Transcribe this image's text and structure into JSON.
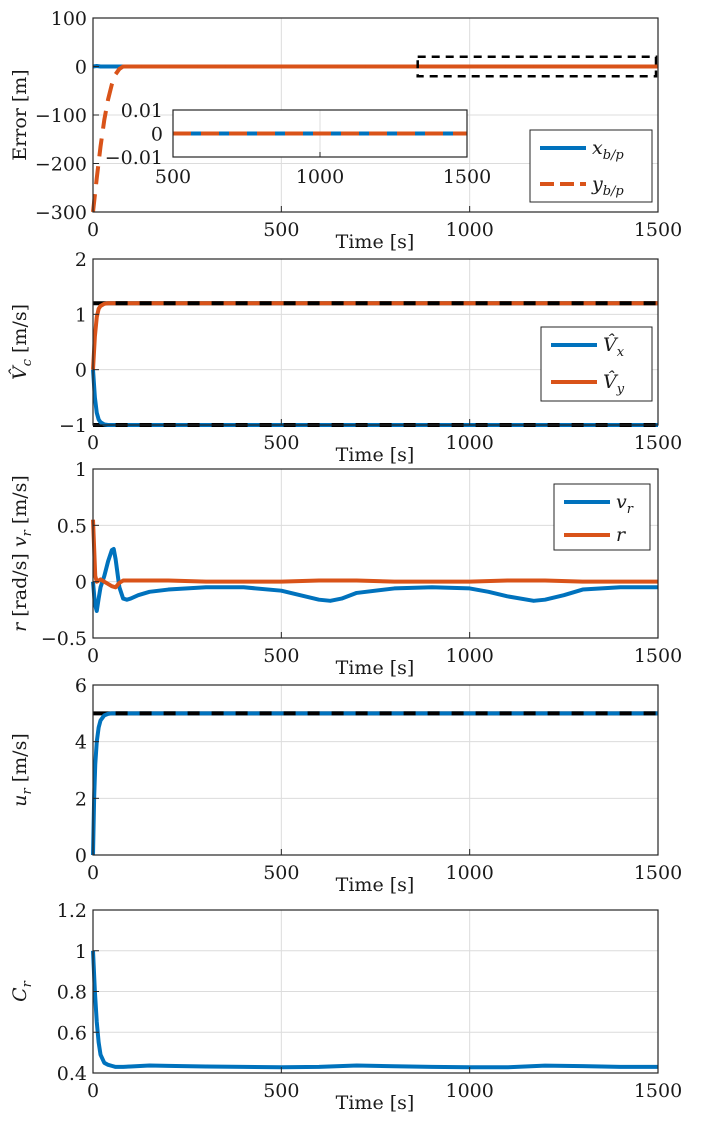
{
  "colors": {
    "blue": "#0072BD",
    "orange": "#D95319",
    "black": "#000000",
    "grid": "#dcdcdc",
    "axis": "#262626"
  },
  "chart_data": [
    {
      "type": "line",
      "id": "error",
      "xlabel": "Time [s]",
      "ylabel": "Error [m]",
      "xlim": [
        0,
        1500
      ],
      "ylim": [
        -300,
        100
      ],
      "xticks": [
        0,
        500,
        1000,
        1500
      ],
      "xtick_labels": [
        "0",
        "500",
        "1000",
        "1500"
      ],
      "yticks": [
        100,
        0,
        -100,
        -200,
        -300
      ],
      "ytick_labels": [
        "100",
        "0",
        "−100",
        "−200",
        "−300"
      ],
      "grid": true,
      "legend_position": "bottom-right",
      "series": [
        {
          "name": "x_b/p",
          "label_main": "x",
          "label_sub": "b/p",
          "color": "#0072BD",
          "style": "solid-dashed",
          "x": [
            0,
            10,
            20,
            1500
          ],
          "values": [
            0,
            1,
            0,
            0
          ]
        },
        {
          "name": "y_b/p",
          "label_main": "y",
          "label_sub": "b/p",
          "color": "#D95319",
          "style": "dashed",
          "x": [
            0,
            10,
            20,
            30,
            40,
            50,
            60,
            70,
            80,
            1500
          ],
          "values": [
            -300,
            -230,
            -165,
            -110,
            -68,
            -37,
            -16,
            -5,
            0,
            0
          ]
        }
      ],
      "zoom_box": {
        "x": [
          870,
          1500
        ],
        "y": [
          -20,
          20
        ]
      },
      "inset": {
        "xlim": [
          500,
          1500
        ],
        "ylim": [
          -0.01,
          0.01
        ],
        "xticks": [
          500,
          1000,
          1500
        ],
        "xtick_labels": [
          "500",
          "1000",
          "1500"
        ],
        "yticks": [
          0.01,
          0,
          -0.01
        ],
        "ytick_labels": [
          "0.01",
          "0",
          "−0.01"
        ]
      }
    },
    {
      "type": "line",
      "id": "current",
      "xlabel": "Time [s]",
      "ylabel_main": "V̂",
      "ylabel_sub": "c",
      "ylabel_unit": " [m/s]",
      "xlim": [
        0,
        1500
      ],
      "ylim": [
        -1,
        2
      ],
      "xticks": [
        0,
        500,
        1000,
        1500
      ],
      "xtick_labels": [
        "0",
        "500",
        "1000",
        "1500"
      ],
      "yticks": [
        2,
        1,
        0,
        -1
      ],
      "ytick_labels": [
        "2",
        "1",
        "0",
        "−1"
      ],
      "grid": true,
      "legend_position": "right",
      "references": [
        {
          "value": 1.2,
          "color": "#000000",
          "style": "dashed"
        },
        {
          "value": -1.0,
          "color": "#000000",
          "style": "dashed"
        }
      ],
      "series": [
        {
          "name": "V̂x",
          "label_main": "V̂",
          "label_sub": "x",
          "color": "#0072BD",
          "style": "solid-dashed",
          "x": [
            0,
            5,
            10,
            15,
            20,
            30,
            40,
            60,
            1500
          ],
          "values": [
            0,
            -0.5,
            -0.78,
            -0.9,
            -0.95,
            -0.99,
            -1.0,
            -1.0,
            -1.0
          ]
        },
        {
          "name": "V̂y",
          "label_main": "V̂",
          "label_sub": "y",
          "color": "#D95319",
          "style": "solid-dashed",
          "x": [
            0,
            5,
            10,
            15,
            20,
            30,
            40,
            60,
            1500
          ],
          "values": [
            0,
            0.6,
            0.95,
            1.1,
            1.15,
            1.19,
            1.2,
            1.2,
            1.2
          ]
        }
      ]
    },
    {
      "type": "line",
      "id": "vr-r",
      "xlabel": "Time [s]",
      "ylabel_parts": [
        "r",
        " [rad/s]   ",
        "v",
        "r",
        " [m/s]"
      ],
      "xlim": [
        0,
        1500
      ],
      "ylim": [
        -0.5,
        1
      ],
      "xticks": [
        0,
        500,
        1000,
        1500
      ],
      "xtick_labels": [
        "0",
        "500",
        "1000",
        "1500"
      ],
      "yticks": [
        1,
        0.5,
        0,
        -0.5
      ],
      "ytick_labels": [
        "1",
        "0.5",
        "0",
        "−0.5"
      ],
      "grid": true,
      "legend_position": "top-right",
      "series": [
        {
          "name": "v_r",
          "label_main": "v",
          "label_sub": "r",
          "color": "#0072BD",
          "style": "solid",
          "x": [
            0,
            5,
            10,
            15,
            20,
            30,
            40,
            50,
            55,
            60,
            70,
            80,
            90,
            100,
            120,
            150,
            200,
            300,
            400,
            500,
            550,
            600,
            630,
            660,
            700,
            800,
            900,
            1000,
            1050,
            1100,
            1170,
            1200,
            1250,
            1300,
            1400,
            1500
          ],
          "values": [
            0,
            -0.2,
            -0.26,
            -0.15,
            -0.05,
            0.05,
            0.18,
            0.28,
            0.29,
            0.2,
            -0.05,
            -0.15,
            -0.16,
            -0.15,
            -0.12,
            -0.09,
            -0.07,
            -0.05,
            -0.05,
            -0.08,
            -0.12,
            -0.16,
            -0.17,
            -0.15,
            -0.1,
            -0.06,
            -0.05,
            -0.06,
            -0.09,
            -0.13,
            -0.17,
            -0.16,
            -0.12,
            -0.07,
            -0.05,
            -0.05
          ]
        },
        {
          "name": "r",
          "label_main": "r",
          "label_sub": "",
          "color": "#D95319",
          "style": "solid",
          "x": [
            0,
            3,
            6,
            10,
            20,
            30,
            40,
            50,
            60,
            70,
            80,
            100,
            200,
            300,
            400,
            500,
            600,
            700,
            800,
            900,
            1000,
            1100,
            1200,
            1300,
            1400,
            1500
          ],
          "values": [
            0.55,
            0.3,
            0.05,
            0.0,
            0.02,
            0.0,
            -0.02,
            -0.04,
            -0.05,
            -0.01,
            0.01,
            0.01,
            0.01,
            0.0,
            0.0,
            0.0,
            0.01,
            0.01,
            0.0,
            0.0,
            0.0,
            0.01,
            0.01,
            0.0,
            0.0,
            0.0
          ]
        }
      ]
    },
    {
      "type": "line",
      "id": "surge",
      "xlabel": "Time [s]",
      "ylabel_main": "u",
      "ylabel_sub": "r",
      "ylabel_unit": " [m/s]",
      "xlim": [
        0,
        1500
      ],
      "ylim": [
        0,
        6
      ],
      "xticks": [
        0,
        500,
        1000,
        1500
      ],
      "xtick_labels": [
        "0",
        "500",
        "1000",
        "1500"
      ],
      "yticks": [
        6,
        4,
        2,
        0
      ],
      "ytick_labels": [
        "6",
        "4",
        "2",
        "0"
      ],
      "grid": true,
      "references": [
        {
          "value": 5,
          "color": "#000000",
          "style": "dashed"
        }
      ],
      "series": [
        {
          "name": "u_r",
          "color": "#0072BD",
          "style": "solid-dashed",
          "x": [
            0,
            3,
            6,
            10,
            15,
            20,
            30,
            40,
            50,
            1500
          ],
          "values": [
            0,
            2.0,
            3.2,
            4.0,
            4.5,
            4.75,
            4.93,
            4.98,
            5.0,
            5.0
          ]
        }
      ]
    },
    {
      "type": "line",
      "id": "cr",
      "xlabel": "Time [s]",
      "ylabel_main": "C",
      "ylabel_sub": "r",
      "ylabel_unit": "",
      "xlim": [
        0,
        1500
      ],
      "ylim": [
        0.4,
        1.2
      ],
      "xticks": [
        0,
        500,
        1000,
        1500
      ],
      "xtick_labels": [
        "0",
        "500",
        "1000",
        "1500"
      ],
      "yticks": [
        1.2,
        1,
        0.8,
        0.6,
        0.4
      ],
      "ytick_labels": [
        "1.2",
        "1",
        "0.8",
        "0.6",
        "0.4"
      ],
      "grid": true,
      "series": [
        {
          "name": "C_r",
          "color": "#0072BD",
          "style": "solid",
          "x": [
            0,
            5,
            10,
            15,
            20,
            30,
            40,
            50,
            60,
            80,
            100,
            150,
            200,
            300,
            400,
            500,
            600,
            700,
            800,
            900,
            1000,
            1100,
            1200,
            1300,
            1400,
            1500
          ],
          "values": [
            1.0,
            0.8,
            0.65,
            0.55,
            0.49,
            0.45,
            0.44,
            0.435,
            0.43,
            0.43,
            0.432,
            0.437,
            0.435,
            0.432,
            0.43,
            0.428,
            0.43,
            0.437,
            0.433,
            0.43,
            0.428,
            0.428,
            0.436,
            0.434,
            0.43,
            0.43
          ]
        }
      ]
    }
  ]
}
